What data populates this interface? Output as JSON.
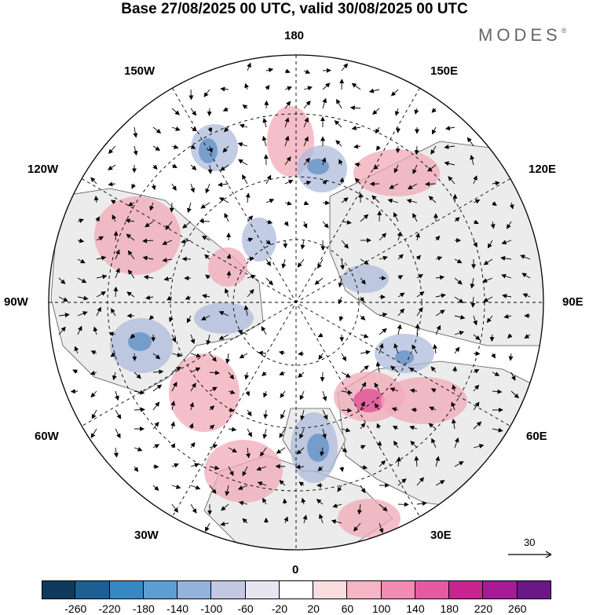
{
  "header": {
    "title": "Base 27/08/2025 00 UTC, valid 30/08/2025 00 UTC",
    "brand": "MODES",
    "brand_mark": "®"
  },
  "map": {
    "projection": "north-polar-stereographic",
    "longitude_labels": {
      "top": "180",
      "upper_left": "150W",
      "upper_right": "150E",
      "mid_upper_left": "120W",
      "mid_upper_right": "120E",
      "left": "90W",
      "right": "90E",
      "mid_lower_left": "60W",
      "mid_lower_right": "60E",
      "lower_left": "30W",
      "lower_right": "30E",
      "bottom": "0"
    },
    "colors": {
      "land": "#ececec",
      "ocean": "#ffffff",
      "positive": "#f2aab8",
      "positive_strong": "#e04a92",
      "negative": "#aebbdb",
      "negative_strong": "#5e8fc6",
      "arrow": "#000000"
    },
    "vector_reference": {
      "value": "30"
    }
  },
  "colorbar": {
    "colors": [
      "#0f3a5c",
      "#1d5f93",
      "#3588c3",
      "#5d9fd2",
      "#93b3dc",
      "#c3c8e2",
      "#e7e5f2",
      "#ffffff",
      "#fbdde0",
      "#f5b5c4",
      "#f28ab2",
      "#e65aa2",
      "#c92390",
      "#a61a96",
      "#6b1886"
    ],
    "ticks": [
      "-260",
      "-220",
      "-180",
      "-140",
      "-100",
      "-60",
      "-20",
      "20",
      "60",
      "100",
      "140",
      "180",
      "220",
      "260"
    ]
  }
}
